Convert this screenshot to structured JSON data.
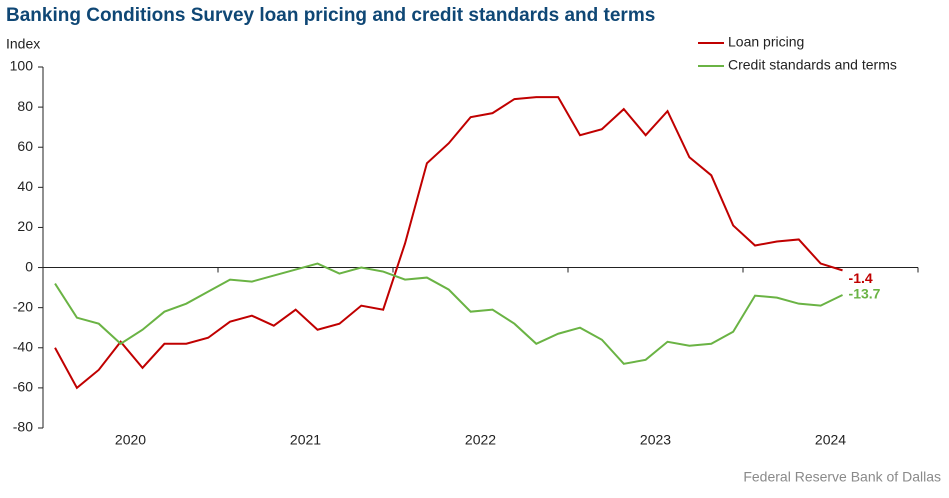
{
  "chart_data": {
    "type": "line",
    "title": "Banking Conditions Survey loan pricing and credit standards and terms",
    "y_label": "Index",
    "source": "Federal Reserve Bank of Dallas",
    "x_labels": [
      "2020",
      "2021",
      "2022",
      "2023",
      "2024"
    ],
    "ylim": [
      -80,
      100
    ],
    "yticks": [
      -80,
      -60,
      -40,
      -20,
      0,
      20,
      40,
      60,
      80,
      100
    ],
    "legend": "top-right",
    "series": [
      {
        "name": "Loan pricing",
        "color": "#c00000",
        "values": [
          -40,
          -60,
          -51,
          -37,
          -50,
          -38,
          -38,
          -35,
          -27,
          -24,
          -29,
          -21,
          -31,
          -28,
          -19,
          -21,
          12,
          52,
          62,
          75,
          77,
          84,
          85,
          85,
          66,
          69,
          79,
          66,
          78,
          55,
          46,
          21,
          11,
          13,
          14,
          2,
          -1.4
        ]
      },
      {
        "name": "Credit standards and terms",
        "color": "#6ab344",
        "values": [
          -8,
          -25,
          -28,
          -38,
          -31,
          -22,
          -18,
          -12,
          -6,
          -7,
          -4,
          -1,
          2,
          -3,
          0,
          -2,
          -6,
          -5,
          -11,
          -22,
          -21,
          -28,
          -38,
          -33,
          -30,
          -36,
          -48,
          -46,
          -37,
          -39,
          -38,
          -32,
          -14,
          -15,
          -18,
          -19,
          -13.7
        ]
      }
    ]
  }
}
